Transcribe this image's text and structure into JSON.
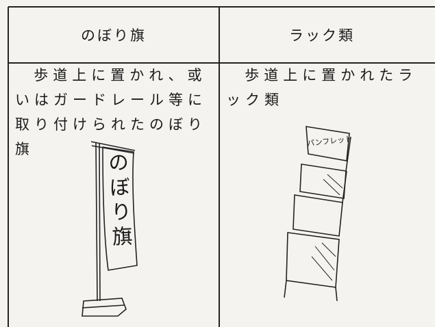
{
  "table": {
    "header": [
      "のぼり旗",
      "ラック類"
    ],
    "rows": [
      [
        "歩道上に置かれ、或いはガードレール等に取り付けられたのぼり旗",
        "歩道上に置かれたラック類"
      ]
    ]
  },
  "illustrations": {
    "flag_text": "のぼり旗",
    "rack_text": "パンフレット"
  }
}
